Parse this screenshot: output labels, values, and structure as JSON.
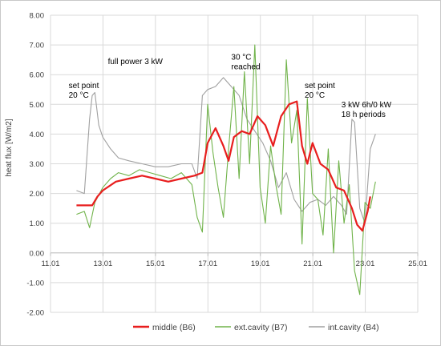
{
  "chart_data": {
    "type": "line",
    "xlabel": "",
    "ylabel": "heat flux  [W/m2]",
    "xlim": [
      11.01,
      25.01
    ],
    "ylim": [
      -2.0,
      8.0
    ],
    "x_ticks": [
      "11.01",
      "13.01",
      "15.01",
      "17.01",
      "19.01",
      "21.01",
      "23.01",
      "25.01"
    ],
    "y_ticks": [
      "-2.00",
      "-1.00",
      "0.00",
      "1.00",
      "2.00",
      "3.00",
      "4.00",
      "5.00",
      "6.00",
      "7.00",
      "8.00"
    ],
    "grid": true,
    "legend_position": "bottom",
    "annotations": [
      {
        "lines": [
          "full power 3 kW"
        ],
        "x": 13.2,
        "y": 6.35
      },
      {
        "lines": [
          "set point",
          "20 °C"
        ],
        "x": 11.7,
        "y": 5.55
      },
      {
        "lines": [
          "30 °C",
          "reached"
        ],
        "x": 17.9,
        "y": 6.5
      },
      {
        "lines": [
          "set point",
          "20 °C"
        ],
        "x": 20.7,
        "y": 5.55
      },
      {
        "lines": [
          "3 kW 6h/0 kW",
          "18 h periods"
        ],
        "x": 22.1,
        "y": 4.9
      }
    ],
    "series": [
      {
        "name": "middle (B6)",
        "color": "#e81e1e",
        "x": [
          12.0,
          12.6,
          12.8,
          13.0,
          13.5,
          14.0,
          14.5,
          15.0,
          15.5,
          16.0,
          16.5,
          16.8,
          17.0,
          17.3,
          17.6,
          17.8,
          18.0,
          18.3,
          18.6,
          18.9,
          19.2,
          19.5,
          19.8,
          20.1,
          20.4,
          20.6,
          20.8,
          21.0,
          21.3,
          21.6,
          21.9,
          22.2,
          22.5,
          22.7,
          22.9,
          23.1,
          23.2
        ],
        "values": [
          1.6,
          1.6,
          1.9,
          2.1,
          2.4,
          2.5,
          2.6,
          2.5,
          2.4,
          2.5,
          2.6,
          2.7,
          3.7,
          4.2,
          3.6,
          3.1,
          3.9,
          4.1,
          4.0,
          4.6,
          4.3,
          3.6,
          4.6,
          5.0,
          5.1,
          3.6,
          3.0,
          3.7,
          3.0,
          2.8,
          2.2,
          2.1,
          1.5,
          0.95,
          0.75,
          1.4,
          1.9
        ]
      },
      {
        "name": "ext.cavity (B7)",
        "color": "#70b34a",
        "x": [
          12.0,
          12.3,
          12.5,
          12.7,
          13.0,
          13.3,
          13.6,
          14.0,
          14.4,
          14.8,
          15.2,
          15.6,
          16.0,
          16.4,
          16.6,
          16.8,
          17.0,
          17.2,
          17.4,
          17.6,
          17.8,
          18.0,
          18.2,
          18.4,
          18.6,
          18.8,
          19.0,
          19.2,
          19.4,
          19.6,
          19.8,
          20.0,
          20.2,
          20.4,
          20.6,
          20.8,
          21.0,
          21.2,
          21.4,
          21.6,
          21.8,
          22.0,
          22.2,
          22.4,
          22.6,
          22.8,
          23.0,
          23.2,
          23.4
        ],
        "values": [
          1.3,
          1.4,
          0.85,
          1.7,
          2.2,
          2.5,
          2.7,
          2.6,
          2.8,
          2.7,
          2.6,
          2.5,
          2.7,
          2.3,
          1.2,
          0.7,
          5.0,
          3.4,
          2.2,
          1.2,
          3.5,
          5.6,
          2.5,
          6.1,
          3.0,
          7.0,
          2.2,
          1.0,
          3.6,
          2.3,
          1.3,
          6.5,
          3.7,
          4.8,
          0.3,
          5.2,
          2.0,
          1.8,
          0.6,
          3.5,
          0.0,
          3.1,
          1.0,
          2.3,
          -0.6,
          -1.4,
          1.7,
          1.5,
          2.4
        ]
      },
      {
        "name": "int.cavity (B4)",
        "color": "#a0a0a0",
        "x": [
          12.0,
          12.3,
          12.5,
          12.6,
          12.7,
          12.85,
          13.0,
          13.3,
          13.6,
          14.0,
          14.5,
          15.0,
          15.5,
          16.0,
          16.4,
          16.6,
          16.8,
          17.0,
          17.3,
          17.6,
          17.9,
          18.2,
          18.5,
          18.8,
          19.1,
          19.4,
          19.7,
          20.0,
          20.3,
          20.6,
          20.9,
          21.2,
          21.5,
          21.8,
          22.1,
          22.3,
          22.5,
          22.6,
          22.8,
          23.0,
          23.2,
          23.4
        ],
        "values": [
          2.1,
          2.0,
          4.5,
          5.3,
          5.4,
          4.3,
          3.9,
          3.5,
          3.2,
          3.1,
          3.0,
          2.9,
          2.9,
          3.0,
          3.0,
          2.5,
          5.3,
          5.5,
          5.6,
          5.9,
          5.6,
          5.3,
          4.5,
          4.1,
          3.7,
          3.1,
          2.2,
          2.7,
          1.8,
          1.4,
          1.7,
          1.8,
          1.6,
          1.9,
          1.6,
          1.3,
          4.5,
          4.4,
          1.5,
          1.0,
          3.5,
          4.0
        ]
      }
    ]
  }
}
